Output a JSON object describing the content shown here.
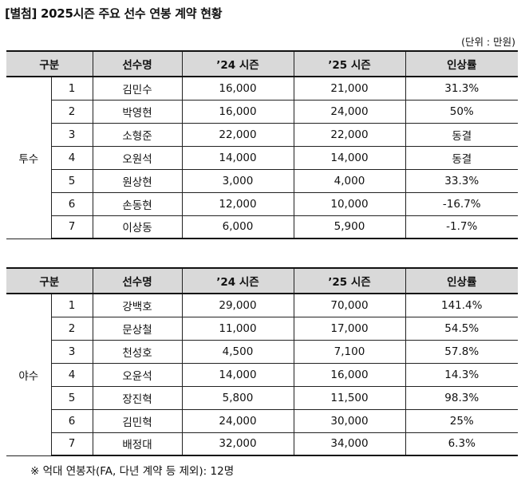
{
  "title": "[별첨] 2025시즌 주요 선수 연봉 계약 현황",
  "unit": "(단위 : 만원)",
  "headers": [
    "구분",
    "선수명",
    "’24 시즌",
    "’25 시즌",
    "인상률"
  ],
  "pitchers": {
    "category": "투수",
    "rows": [
      {
        "no": "1",
        "name": "김민수",
        "s24": "16,000",
        "s25": "21,000",
        "rate": "31.3%"
      },
      {
        "no": "2",
        "name": "박영현",
        "s24": "16,000",
        "s25": "24,000",
        "rate": "50%"
      },
      {
        "no": "3",
        "name": "소형준",
        "s24": "22,000",
        "s25": "22,000",
        "rate": "동결"
      },
      {
        "no": "4",
        "name": "오원석",
        "s24": "14,000",
        "s25": "14,000",
        "rate": "동결"
      },
      {
        "no": "5",
        "name": "원상현",
        "s24": "3,000",
        "s25": "4,000",
        "rate": "33.3%"
      },
      {
        "no": "6",
        "name": "손동현",
        "s24": "12,000",
        "s25": "10,000",
        "rate": "-16.7%"
      },
      {
        "no": "7",
        "name": "이상동",
        "s24": "6,000",
        "s25": "5,900",
        "rate": "-1.7%"
      }
    ]
  },
  "batters": {
    "category": "야수",
    "rows": [
      {
        "no": "1",
        "name": "강백호",
        "s24": "29,000",
        "s25": "70,000",
        "rate": "141.4%"
      },
      {
        "no": "2",
        "name": "문상철",
        "s24": "11,000",
        "s25": "17,000",
        "rate": "54.5%"
      },
      {
        "no": "3",
        "name": "천성호",
        "s24": "4,500",
        "s25": "7,100",
        "rate": "57.8%"
      },
      {
        "no": "4",
        "name": "오윤석",
        "s24": "14,000",
        "s25": "16,000",
        "rate": "14.3%"
      },
      {
        "no": "5",
        "name": "장진혁",
        "s24": "5,800",
        "s25": "11,500",
        "rate": "98.3%"
      },
      {
        "no": "6",
        "name": "김민혁",
        "s24": "24,000",
        "s25": "30,000",
        "rate": "25%"
      },
      {
        "no": "7",
        "name": "배정대",
        "s24": "32,000",
        "s25": "34,000",
        "rate": "6.3%"
      }
    ]
  },
  "footnote": "※  억대 연봉자(FA, 다년 계약 등 제외): 12명"
}
